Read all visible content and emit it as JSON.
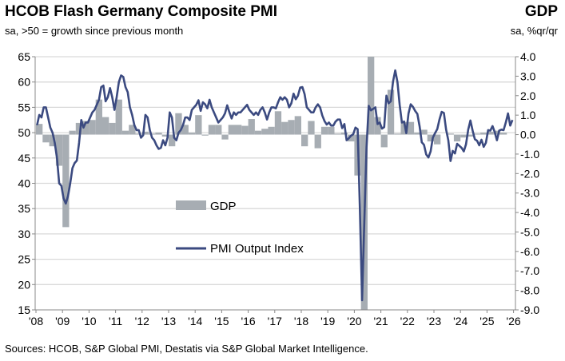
{
  "chart_data": {
    "type": "bar+line",
    "title": "HCOB Flash Germany Composite PMI",
    "subtitle": "sa, >50 = growth since previous month",
    "right_title": "GDP",
    "right_subtitle": "sa, %qr/qr",
    "source": "Sources: HCOB, S&P Global PMI, Destatis via S&P Global Market Intelligence.",
    "x_tick_labels": [
      "'08",
      "'09",
      "'10",
      "'11",
      "'12",
      "'13",
      "'14",
      "'15",
      "'16",
      "'17",
      "'18",
      "'19",
      "'20",
      "'21",
      "'22",
      "'23",
      "'24",
      "'25",
      "'26"
    ],
    "left_axis": {
      "ylim": [
        15,
        65
      ],
      "ticks": [
        "65",
        "60",
        "55",
        "50",
        "45",
        "40",
        "35",
        "30",
        "25",
        "20",
        "15"
      ]
    },
    "right_axis": {
      "ylim": [
        -9.0,
        4.0
      ],
      "ticks": [
        "4.0",
        "3.0",
        "2.0",
        "1.0",
        "0.0",
        "-1.0",
        "-2.0",
        "-3.0",
        "-4.0",
        "-5.0",
        "-6.0",
        "-7.0",
        "-8.0",
        "-9.0"
      ]
    },
    "grid": "horizontal",
    "legend": [
      "GDP",
      "PMI Output Index"
    ],
    "legend_placement": "inside-center-left",
    "colors": {
      "gdp": "#a7adb3",
      "pmi": "#3b4a80"
    },
    "gdp": {
      "name": "GDP",
      "axis": "right",
      "start": "2008Q1",
      "values": [
        0.55,
        -0.4,
        -0.6,
        -1.6,
        -4.75,
        0.2,
        0.6,
        0.7,
        0.75,
        1.8,
        0.9,
        0.6,
        1.8,
        0.2,
        0.5,
        0.05,
        0.15,
        0.05,
        0.1,
        -0.1,
        -0.6,
        1.1,
        0.5,
        0.1,
        1.0,
        -0.05,
        0.5,
        0.5,
        -0.25,
        0.5,
        0.5,
        0.45,
        0.8,
        0.2,
        0.3,
        0.4,
        1.2,
        0.65,
        0.75,
        0.95,
        -0.6,
        0.7,
        -0.7,
        0.4,
        0.4,
        0.05,
        0.1,
        -0.35,
        -2.1,
        -9.0,
        8.7,
        0.9,
        -0.65,
        2.3,
        0.05,
        0.65,
        0.65,
        0.1,
        0.25,
        -0.35,
        -0.5,
        0.0,
        0.05,
        -0.35,
        -0.15,
        -0.1,
        0.05,
        0.1,
        0.15,
        0.2,
        0.1
      ]
    },
    "pmi": {
      "name": "PMI Output Index",
      "axis": "left",
      "start": "2008-01",
      "values": [
        51.5,
        53.5,
        53,
        55,
        55,
        53,
        51,
        50,
        48,
        45,
        40,
        39.5,
        37,
        36,
        37.5,
        40,
        43,
        44,
        44.5,
        48,
        52.5,
        51,
        52,
        52,
        53,
        54,
        54.5,
        55.5,
        56.5,
        59,
        59.3,
        56.2,
        57,
        58.8,
        57,
        54.5,
        57,
        60,
        61.3,
        61,
        59,
        58,
        55,
        53.5,
        51.5,
        50.5,
        50.5,
        49,
        49.5,
        53.5,
        53,
        50.5,
        49,
        48.5,
        47.5,
        46.8,
        47,
        48.5,
        47.5,
        49,
        54,
        53,
        49,
        48.5,
        50,
        50.5,
        51.5,
        53,
        53,
        52.5,
        54.5,
        55,
        55.5,
        56.4,
        54.3,
        56,
        55.6,
        54.8,
        56.5,
        55,
        54,
        53,
        52,
        52.5,
        53,
        53.8,
        55.4,
        54,
        52.8,
        54,
        53.5,
        54,
        54,
        54.5,
        55,
        55.5,
        54.5,
        54,
        53.5,
        54,
        53.5,
        54.5,
        55,
        54,
        52.6,
        54,
        55,
        55,
        54.8,
        56,
        57,
        56.5,
        57,
        56.5,
        55,
        55.8,
        57.7,
        56.6,
        57.3,
        58.9,
        59,
        57.6,
        55,
        54.5,
        54,
        54,
        55,
        55.6,
        55,
        53.4,
        52.3,
        51.6,
        52,
        51.4,
        51.4,
        52.2,
        52.6,
        52.6,
        50.9,
        51.7,
        48.5,
        48.9,
        49.4,
        49.7,
        51,
        50.7,
        35,
        16.9,
        32.3,
        47,
        55.3,
        54.4,
        54.7,
        55,
        51.7,
        52,
        50.8,
        51.1,
        57.3,
        55.8,
        56.2,
        60.1,
        62.3,
        60,
        55.5,
        52,
        52.2,
        49.9,
        53.8,
        55.6,
        55.1,
        54.3,
        53.7,
        51.3,
        48.1,
        47.6,
        45.7,
        45.1,
        46.3,
        49,
        49.9,
        50.7,
        52.6,
        54.1,
        53.9,
        50.6,
        48.5,
        44.4,
        46.4,
        45.9,
        47.8,
        47.4,
        47,
        46.3,
        47.7,
        50.6,
        52.4,
        50.4,
        48.7,
        48.4,
        47.5,
        48.6,
        47.2,
        48,
        50.5,
        50.4,
        51.3,
        50.1,
        48.5,
        50.4,
        50.6,
        50.5,
        52,
        53.8,
        51.4,
        52.5
      ]
    }
  }
}
